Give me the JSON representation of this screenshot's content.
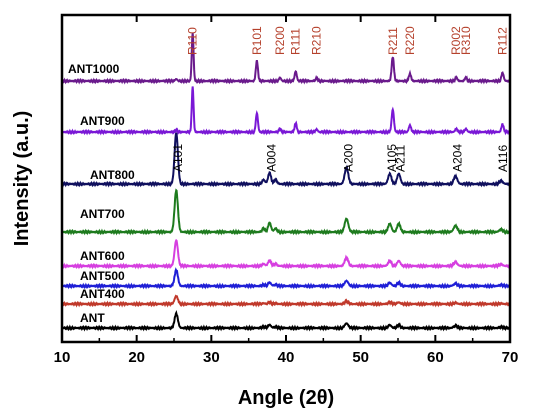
{
  "chart_data": {
    "type": "line",
    "xlabel": "Angle (2θ)",
    "ylabel": "Intensity (a.u.)",
    "xlim": [
      10,
      70
    ],
    "xticks": [
      10,
      20,
      30,
      40,
      50,
      60,
      70
    ],
    "yticks": "none",
    "grid": false,
    "rutile_peaks": [
      {
        "label": "R110",
        "x": 27.5
      },
      {
        "label": "R101",
        "x": 36.1
      },
      {
        "label": "R200",
        "x": 39.2
      },
      {
        "label": "R111",
        "x": 41.3
      },
      {
        "label": "R210",
        "x": 44.1
      },
      {
        "label": "R211",
        "x": 54.3
      },
      {
        "label": "R220",
        "x": 56.6
      },
      {
        "label": "R002",
        "x": 62.8
      },
      {
        "label": "R310",
        "x": 64.1
      },
      {
        "label": "R112",
        "x": 69.0
      }
    ],
    "anatase_peaks": [
      {
        "label": "A101",
        "x": 25.3
      },
      {
        "label": "A004",
        "x": 37.8
      },
      {
        "label": "A200",
        "x": 48.1
      },
      {
        "label": "A105",
        "x": 53.9
      },
      {
        "label": "A211",
        "x": 55.1
      },
      {
        "label": "A204",
        "x": 62.7
      },
      {
        "label": "A116",
        "x": 68.8
      }
    ],
    "series": [
      {
        "name": "ANT",
        "color": "#000000",
        "baseline": 0.0,
        "phase": "anatase",
        "scale": 0.9
      },
      {
        "name": "ANT400",
        "color": "#c0392b",
        "baseline": 1.0,
        "phase": "anatase",
        "scale": 0.5
      },
      {
        "name": "ANT500",
        "color": "#1f1fd6",
        "baseline": 2.0,
        "phase": "anatase",
        "scale": 1.0
      },
      {
        "name": "ANT600",
        "color": "#d63fe0",
        "baseline": 3.0,
        "phase": "anatase",
        "scale": 1.6
      },
      {
        "name": "ANT700",
        "color": "#1e7b1e",
        "baseline": 4.5,
        "phase": "anatase",
        "scale": 2.6
      },
      {
        "name": "ANT800",
        "color": "#10105e",
        "baseline": 6.5,
        "phase": "anatase",
        "scale": 3.2
      },
      {
        "name": "ANT900",
        "color": "#7a18d6",
        "baseline": 8.3,
        "phase": "rutile",
        "scale": 2.8
      },
      {
        "name": "ANT1000",
        "color": "#6a1a8c",
        "baseline": 10.3,
        "phase": "rutile",
        "scale": 3.0
      }
    ]
  }
}
